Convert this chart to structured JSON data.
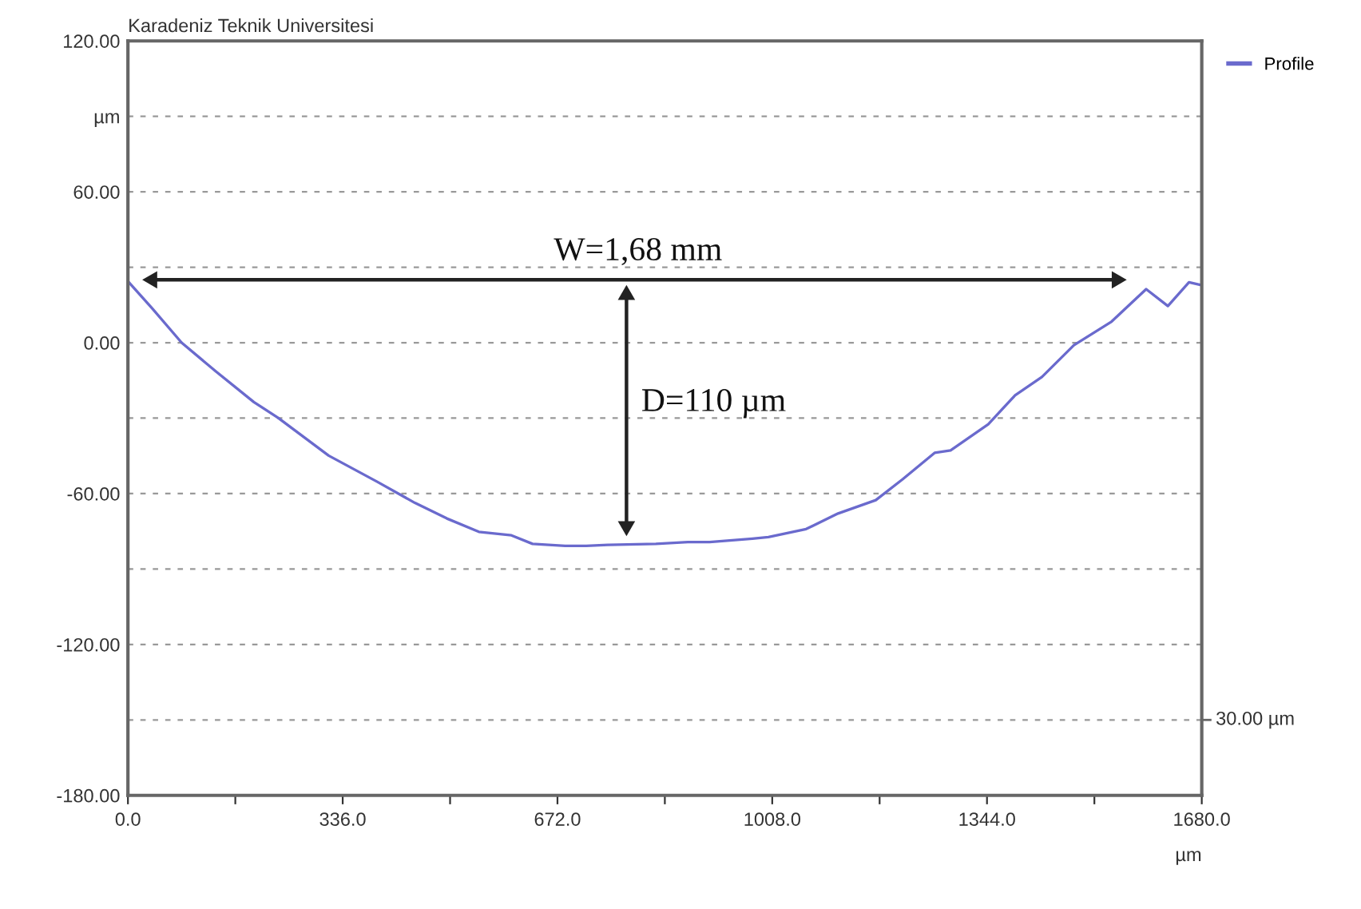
{
  "chart_data": {
    "type": "line",
    "title": "Karadeniz Teknik Universitesi",
    "xlabel": "µm",
    "x": [
      0,
      38,
      84,
      138,
      197,
      235,
      314,
      390,
      449,
      499,
      549,
      600,
      633,
      684,
      717,
      751,
      826,
      876,
      910,
      977,
      1002,
      1061,
      1111,
      1170,
      1212,
      1262,
      1287,
      1346,
      1388,
      1430,
      1480,
      1539,
      1593,
      1627,
      1660,
      1677
    ],
    "series": [
      {
        "name": "Profile",
        "color": "#6a6acd",
        "values": [
          24.4,
          13.6,
          0,
          -11.5,
          -23.6,
          -29.9,
          -44.9,
          -55.3,
          -63.7,
          -69.9,
          -75.2,
          -76.6,
          -80.0,
          -80.8,
          -80.8,
          -80.4,
          -80.0,
          -79.3,
          -79.3,
          -77.9,
          -77.3,
          -74.1,
          -67.9,
          -62.6,
          -54.3,
          -43.8,
          -42.8,
          -32.4,
          -20.9,
          -13.6,
          -1.0,
          8.4,
          21.3,
          14.6,
          24.0,
          23.0
        ]
      },
      {
        "type": "line",
        "color": "#222222",
        "marker": "triangle",
        "x": [
          38,
          1547
        ],
        "values": [
          25,
          25
        ]
      },
      {
        "type": "line",
        "color": "#222222",
        "marker": "triangle",
        "x": [
          780,
          780
        ],
        "values": [
          19,
          -73
        ]
      }
    ],
    "xlim": [
      0,
      1680
    ],
    "xticks": [
      {
        "value": 0,
        "label": "0.0"
      },
      {
        "value": 168,
        "label": null
      },
      {
        "value": 336,
        "label": "336.0"
      },
      {
        "value": 504,
        "label": null
      },
      {
        "value": 672,
        "label": "672.0"
      },
      {
        "value": 840,
        "label": null
      },
      {
        "value": 1008,
        "label": "1008.0"
      },
      {
        "value": 1176,
        "label": null
      },
      {
        "value": 1344,
        "label": "1344.0"
      },
      {
        "value": 1512,
        "label": null
      },
      {
        "value": 1680,
        "label": "1680.0"
      }
    ],
    "ylim": [
      -180,
      120
    ],
    "yticks": [
      {
        "value": 120,
        "label": "120.00"
      },
      {
        "value": 90,
        "label": "µm"
      },
      {
        "value": 60,
        "label": "60.00"
      },
      {
        "value": 30,
        "label": null
      },
      {
        "value": 0,
        "label": "0.00"
      },
      {
        "value": -30,
        "label": null
      },
      {
        "value": -60,
        "label": "-60.00"
      },
      {
        "value": -90,
        "label": null
      },
      {
        "value": -120,
        "label": "-120.00"
      },
      {
        "value": -150,
        "label": null
      },
      {
        "value": -180,
        "label": "-180.00"
      }
    ],
    "annotations": [
      "W=1,68 mm",
      "D=110 µm",
      "30.00 µm"
    ],
    "grid": "y",
    "legend": "top right",
    "marker": "none",
    "line_style": "solid"
  }
}
